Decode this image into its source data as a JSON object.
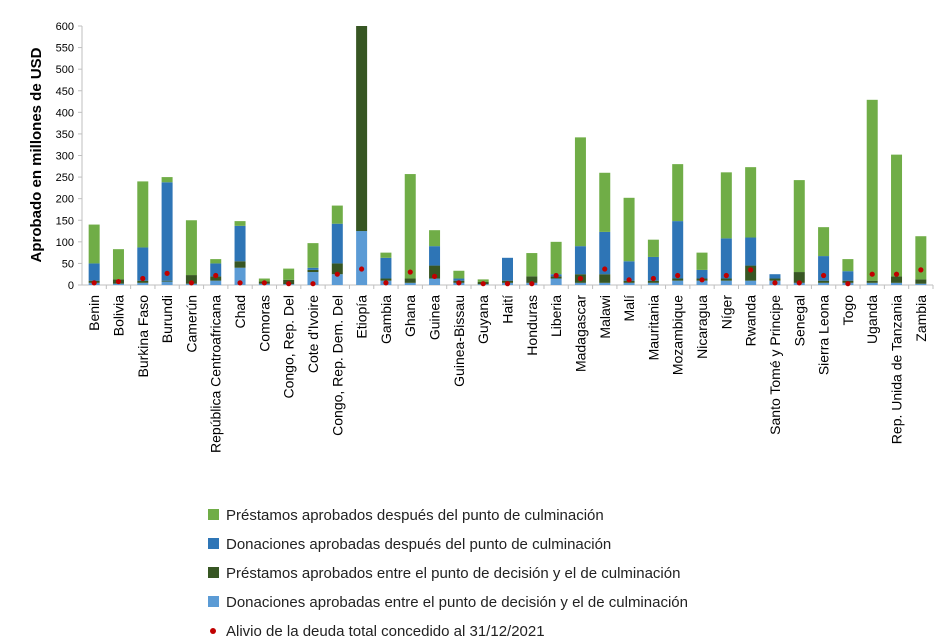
{
  "chart_data": {
    "type": "bar",
    "stacked": true,
    "title": "",
    "xlabel": "",
    "ylabel": "Aprobado en millones de USD",
    "ylim": [
      0,
      600
    ],
    "yticks": [
      0,
      50,
      100,
      150,
      200,
      250,
      300,
      350,
      400,
      450,
      500,
      550,
      600
    ],
    "grid": false,
    "legend_position": "bottom",
    "categories": [
      "Benin",
      "Bolivia",
      "Burkina Faso",
      "Burundi",
      "Camerún",
      "República Centroafricana",
      "Chad",
      "Comoras",
      "Congo, Rep. Del",
      "Cote d'Ivoire",
      "Congo, Rep. Dem. Del",
      "Etiopía",
      "Gambia",
      "Ghana",
      "Guinea",
      "Guinea-Bissau",
      "Guyana",
      "Haití",
      "Honduras",
      "Liberia",
      "Madagascar",
      "Malawi",
      "Malí",
      "Mauritania",
      "Mozambique",
      "Nicaragua",
      "Níger",
      "Rwanda",
      "Santo Tomé y Principe",
      "Senegal",
      "Sierra Leona",
      "Togo",
      "Uganda",
      "Rep. Unida de Tanzania",
      "Zambia"
    ],
    "series": [
      {
        "name": "Donaciones aprobadas entre el punto de decisión y el de culminación",
        "color": "#5b9bd5",
        "kind": "bar",
        "values": [
          5,
          3,
          5,
          8,
          3,
          10,
          40,
          3,
          2,
          30,
          25,
          125,
          10,
          5,
          15,
          5,
          2,
          5,
          5,
          15,
          5,
          5,
          5,
          5,
          10,
          10,
          10,
          10,
          10,
          5,
          5,
          5,
          5,
          5,
          3
        ]
      },
      {
        "name": "Préstamos aprobados entre el punto de decisión y el de culminación",
        "color": "#375623",
        "kind": "bar",
        "values": [
          5,
          10,
          5,
          2,
          20,
          10,
          15,
          5,
          10,
          5,
          25,
          475,
          5,
          10,
          30,
          5,
          5,
          5,
          15,
          5,
          20,
          20,
          5,
          5,
          5,
          5,
          5,
          35,
          5,
          25,
          5,
          5,
          5,
          15,
          10
        ]
      },
      {
        "name": "Donaciones aprobadas después del punto de culminación",
        "color": "#2e75b6",
        "kind": "bar",
        "values": [
          40,
          0,
          77,
          228,
          0,
          30,
          82,
          0,
          0,
          5,
          92,
          0,
          48,
          0,
          45,
          5,
          0,
          53,
          0,
          5,
          65,
          98,
          45,
          55,
          133,
          20,
          93,
          65,
          10,
          0,
          57,
          22,
          0,
          0,
          0
        ]
      },
      {
        "name": "Préstamos aprobados después del punto de culminación",
        "color": "#70ad47",
        "kind": "bar",
        "values": [
          90,
          70,
          153,
          12,
          127,
          10,
          11,
          7,
          26,
          57,
          42,
          0,
          12,
          242,
          37,
          18,
          6,
          0,
          54,
          75,
          252,
          137,
          147,
          40,
          132,
          40,
          153,
          163,
          0,
          213,
          67,
          28,
          419,
          282,
          100
        ]
      },
      {
        "name": "Alivio  de la deuda total concedido al 31/12/2021",
        "color": "#c00000",
        "kind": "marker",
        "values": [
          5,
          8,
          15,
          27,
          5,
          22,
          5,
          5,
          3,
          3,
          25,
          37,
          5,
          30,
          20,
          5,
          3,
          3,
          3,
          22,
          15,
          37,
          12,
          15,
          22,
          12,
          22,
          35,
          5,
          5,
          22,
          3,
          25,
          25,
          35
        ]
      }
    ]
  }
}
